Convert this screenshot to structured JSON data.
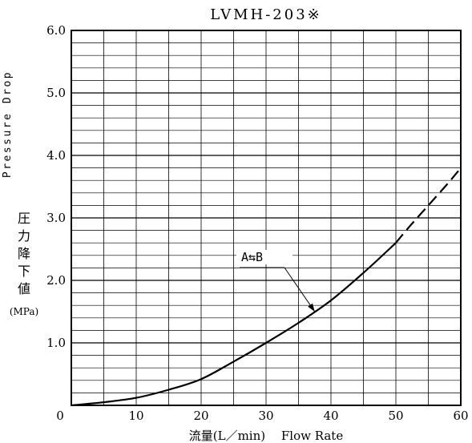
{
  "chart_data": {
    "type": "line",
    "title": "LVMH-203※",
    "xlabel": "流量(L／min)　 Flow Rate",
    "ylabel_en": "Pressure Drop",
    "ylabel_jp": [
      "圧",
      "力",
      "降",
      "下",
      "値"
    ],
    "ylabel_unit": "(MPa)",
    "xlim": [
      0,
      60
    ],
    "ylim": [
      0,
      6.0
    ],
    "x_ticks": [
      {
        "v": 0,
        "label": "0"
      },
      {
        "v": 10,
        "label": "10"
      },
      {
        "v": 20,
        "label": "20"
      },
      {
        "v": 30,
        "label": "30"
      },
      {
        "v": 40,
        "label": "40"
      },
      {
        "v": 50,
        "label": "50"
      },
      {
        "v": 60,
        "label": "60"
      }
    ],
    "y_ticks": [
      {
        "v": 1,
        "label": "1.0"
      },
      {
        "v": 2,
        "label": "2.0"
      },
      {
        "v": 3,
        "label": "3.0"
      },
      {
        "v": 4,
        "label": "4.0"
      },
      {
        "v": 5,
        "label": "5.0"
      },
      {
        "v": 6,
        "label": "6.0"
      }
    ],
    "grid": {
      "x_step": 5,
      "y_step": 0.2
    },
    "annotation": {
      "text": "A⇆B",
      "point": [
        37.5,
        1.5
      ]
    },
    "series": [
      {
        "style": "solid",
        "x": [
          0,
          5,
          10,
          15,
          20,
          25,
          30,
          35,
          40,
          45,
          50
        ],
        "y": [
          0,
          0.05,
          0.12,
          0.25,
          0.42,
          0.7,
          1.0,
          1.32,
          1.68,
          2.12,
          2.6
        ]
      },
      {
        "style": "dashed",
        "x": [
          50,
          52,
          55,
          58,
          60
        ],
        "y": [
          2.6,
          2.85,
          3.2,
          3.55,
          3.8
        ]
      }
    ]
  }
}
